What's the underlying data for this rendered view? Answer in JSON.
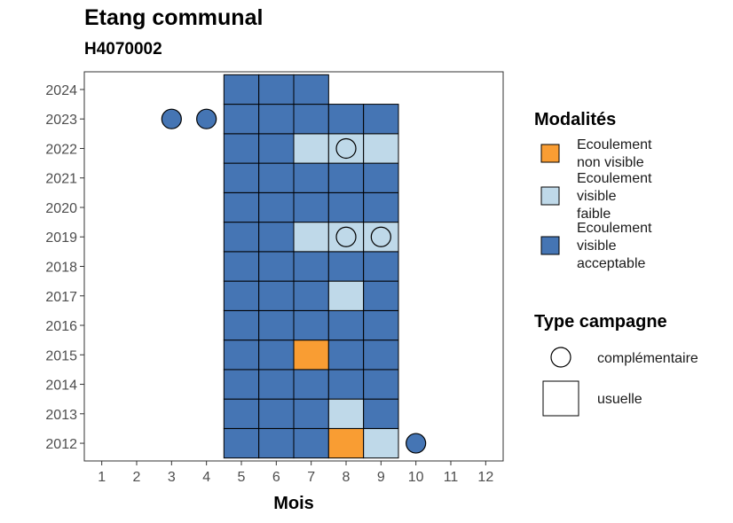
{
  "chart_data": {
    "type": "heatmap",
    "title": "Etang communal",
    "subtitle": "H4070002",
    "xlabel": "Mois",
    "ylabel": "",
    "x_ticks": [
      1,
      2,
      3,
      4,
      5,
      6,
      7,
      8,
      9,
      10,
      11,
      12
    ],
    "y_ticks": [
      2012,
      2013,
      2014,
      2015,
      2016,
      2017,
      2018,
      2019,
      2020,
      2021,
      2022,
      2023,
      2024
    ],
    "xlim": [
      0.5,
      12.5
    ],
    "ylim": [
      2011.4,
      2024.6
    ],
    "grid": false,
    "legend_placement": "right",
    "colors": {
      "Ecoulement non visible": "#f99d33",
      "Ecoulement visible faible": "#bfd9e9",
      "Ecoulement visible acceptable": "#4575b4",
      "outline": "#000000"
    },
    "legend": {
      "modalites_title": "Modalités",
      "modalites": [
        {
          "key": "Ecoulement non visible",
          "lines": [
            "Ecoulement",
            "non visible"
          ]
        },
        {
          "key": "Ecoulement visible faible",
          "lines": [
            "Ecoulement",
            "visible",
            "faible"
          ]
        },
        {
          "key": "Ecoulement visible acceptable",
          "lines": [
            "Ecoulement",
            "visible",
            "acceptable"
          ]
        }
      ],
      "type_title": "Type campagne",
      "types": [
        "complémentaire",
        "usuelle"
      ]
    },
    "cells_usuelle": [
      {
        "year": 2012,
        "month": 5,
        "value": "Ecoulement visible acceptable"
      },
      {
        "year": 2012,
        "month": 6,
        "value": "Ecoulement visible acceptable"
      },
      {
        "year": 2012,
        "month": 7,
        "value": "Ecoulement visible acceptable"
      },
      {
        "year": 2012,
        "month": 8,
        "value": "Ecoulement non visible"
      },
      {
        "year": 2012,
        "month": 9,
        "value": "Ecoulement visible faible"
      },
      {
        "year": 2013,
        "month": 5,
        "value": "Ecoulement visible acceptable"
      },
      {
        "year": 2013,
        "month": 6,
        "value": "Ecoulement visible acceptable"
      },
      {
        "year": 2013,
        "month": 7,
        "value": "Ecoulement visible acceptable"
      },
      {
        "year": 2013,
        "month": 8,
        "value": "Ecoulement visible faible"
      },
      {
        "year": 2013,
        "month": 9,
        "value": "Ecoulement visible acceptable"
      },
      {
        "year": 2014,
        "month": 5,
        "value": "Ecoulement visible acceptable"
      },
      {
        "year": 2014,
        "month": 6,
        "value": "Ecoulement visible acceptable"
      },
      {
        "year": 2014,
        "month": 7,
        "value": "Ecoulement visible acceptable"
      },
      {
        "year": 2014,
        "month": 8,
        "value": "Ecoulement visible acceptable"
      },
      {
        "year": 2014,
        "month": 9,
        "value": "Ecoulement visible acceptable"
      },
      {
        "year": 2015,
        "month": 5,
        "value": "Ecoulement visible acceptable"
      },
      {
        "year": 2015,
        "month": 6,
        "value": "Ecoulement visible acceptable"
      },
      {
        "year": 2015,
        "month": 7,
        "value": "Ecoulement non visible"
      },
      {
        "year": 2015,
        "month": 8,
        "value": "Ecoulement visible acceptable"
      },
      {
        "year": 2015,
        "month": 9,
        "value": "Ecoulement visible acceptable"
      },
      {
        "year": 2016,
        "month": 5,
        "value": "Ecoulement visible acceptable"
      },
      {
        "year": 2016,
        "month": 6,
        "value": "Ecoulement visible acceptable"
      },
      {
        "year": 2016,
        "month": 7,
        "value": "Ecoulement visible acceptable"
      },
      {
        "year": 2016,
        "month": 8,
        "value": "Ecoulement visible acceptable"
      },
      {
        "year": 2016,
        "month": 9,
        "value": "Ecoulement visible acceptable"
      },
      {
        "year": 2017,
        "month": 5,
        "value": "Ecoulement visible acceptable"
      },
      {
        "year": 2017,
        "month": 6,
        "value": "Ecoulement visible acceptable"
      },
      {
        "year": 2017,
        "month": 7,
        "value": "Ecoulement visible acceptable"
      },
      {
        "year": 2017,
        "month": 8,
        "value": "Ecoulement visible faible"
      },
      {
        "year": 2017,
        "month": 9,
        "value": "Ecoulement visible acceptable"
      },
      {
        "year": 2018,
        "month": 5,
        "value": "Ecoulement visible acceptable"
      },
      {
        "year": 2018,
        "month": 6,
        "value": "Ecoulement visible acceptable"
      },
      {
        "year": 2018,
        "month": 7,
        "value": "Ecoulement visible acceptable"
      },
      {
        "year": 2018,
        "month": 8,
        "value": "Ecoulement visible acceptable"
      },
      {
        "year": 2018,
        "month": 9,
        "value": "Ecoulement visible acceptable"
      },
      {
        "year": 2019,
        "month": 5,
        "value": "Ecoulement visible acceptable"
      },
      {
        "year": 2019,
        "month": 6,
        "value": "Ecoulement visible acceptable"
      },
      {
        "year": 2019,
        "month": 7,
        "value": "Ecoulement visible faible"
      },
      {
        "year": 2019,
        "month": 8,
        "value": "Ecoulement visible faible"
      },
      {
        "year": 2019,
        "month": 9,
        "value": "Ecoulement visible faible"
      },
      {
        "year": 2020,
        "month": 5,
        "value": "Ecoulement visible acceptable"
      },
      {
        "year": 2020,
        "month": 6,
        "value": "Ecoulement visible acceptable"
      },
      {
        "year": 2020,
        "month": 7,
        "value": "Ecoulement visible acceptable"
      },
      {
        "year": 2020,
        "month": 8,
        "value": "Ecoulement visible acceptable"
      },
      {
        "year": 2020,
        "month": 9,
        "value": "Ecoulement visible acceptable"
      },
      {
        "year": 2021,
        "month": 5,
        "value": "Ecoulement visible acceptable"
      },
      {
        "year": 2021,
        "month": 6,
        "value": "Ecoulement visible acceptable"
      },
      {
        "year": 2021,
        "month": 7,
        "value": "Ecoulement visible acceptable"
      },
      {
        "year": 2021,
        "month": 8,
        "value": "Ecoulement visible acceptable"
      },
      {
        "year": 2021,
        "month": 9,
        "value": "Ecoulement visible acceptable"
      },
      {
        "year": 2022,
        "month": 5,
        "value": "Ecoulement visible acceptable"
      },
      {
        "year": 2022,
        "month": 6,
        "value": "Ecoulement visible acceptable"
      },
      {
        "year": 2022,
        "month": 7,
        "value": "Ecoulement visible faible"
      },
      {
        "year": 2022,
        "month": 8,
        "value": "Ecoulement visible faible"
      },
      {
        "year": 2022,
        "month": 9,
        "value": "Ecoulement visible faible"
      },
      {
        "year": 2023,
        "month": 5,
        "value": "Ecoulement visible acceptable"
      },
      {
        "year": 2023,
        "month": 6,
        "value": "Ecoulement visible acceptable"
      },
      {
        "year": 2023,
        "month": 7,
        "value": "Ecoulement visible acceptable"
      },
      {
        "year": 2023,
        "month": 8,
        "value": "Ecoulement visible acceptable"
      },
      {
        "year": 2023,
        "month": 9,
        "value": "Ecoulement visible acceptable"
      },
      {
        "year": 2024,
        "month": 5,
        "value": "Ecoulement visible acceptable"
      },
      {
        "year": 2024,
        "month": 6,
        "value": "Ecoulement visible acceptable"
      },
      {
        "year": 2024,
        "month": 7,
        "value": "Ecoulement visible acceptable"
      }
    ],
    "points_complementaire": [
      {
        "year": 2012,
        "month": 10,
        "value": "Ecoulement visible acceptable"
      },
      {
        "year": 2019,
        "month": 8,
        "value": "Ecoulement visible faible"
      },
      {
        "year": 2019,
        "month": 9,
        "value": "Ecoulement visible faible"
      },
      {
        "year": 2022,
        "month": 8,
        "value": "Ecoulement visible faible"
      },
      {
        "year": 2023,
        "month": 3,
        "value": "Ecoulement visible acceptable"
      },
      {
        "year": 2023,
        "month": 4,
        "value": "Ecoulement visible acceptable"
      }
    ]
  }
}
